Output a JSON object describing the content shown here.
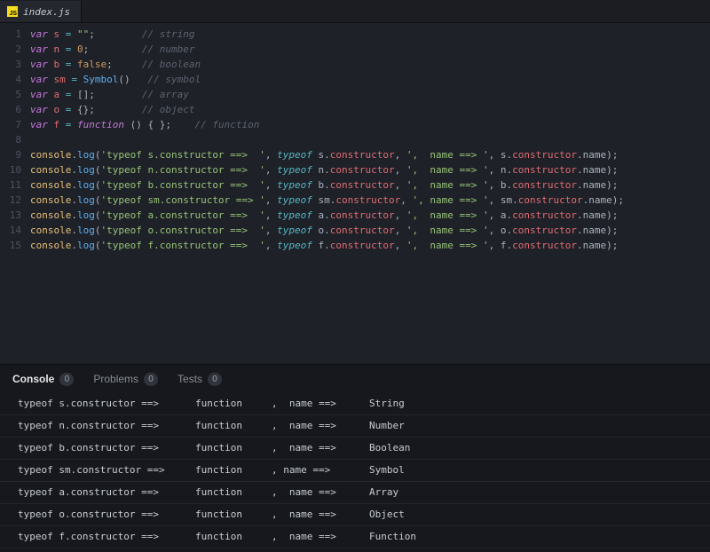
{
  "tab": {
    "filename": "index.js"
  },
  "panel": {
    "tabs": {
      "console": {
        "label": "Console",
        "badge": "0"
      },
      "problems": {
        "label": "Problems",
        "badge": "0"
      },
      "tests": {
        "label": "Tests",
        "badge": "0"
      }
    }
  },
  "editor_lines": [
    {
      "n": 1,
      "kind": "decl",
      "var": "s",
      "rhs_html": "<span class='str'>\"\"</span>",
      "pad": 8,
      "comment": "// string"
    },
    {
      "n": 2,
      "kind": "decl",
      "var": "n",
      "rhs_html": "<span class='num'>0</span>",
      "pad": 9,
      "comment": "// number"
    },
    {
      "n": 3,
      "kind": "decl",
      "var": "b",
      "rhs_html": "<span class='bool'>false</span>",
      "pad": 5,
      "comment": "// boolean"
    },
    {
      "n": 4,
      "kind": "decl",
      "var": "sm",
      "rhs_html": "<span class='fn'>Symbol</span><span class='pn'>()</span>",
      "pad": 3,
      "comment": "// symbol",
      "nosemi": true
    },
    {
      "n": 5,
      "kind": "decl",
      "var": "a",
      "rhs_html": "<span class='pn'>[]</span>",
      "pad": 8,
      "comment": "// array"
    },
    {
      "n": 6,
      "kind": "decl",
      "var": "o",
      "rhs_html": "<span class='pn'>{}</span>",
      "pad": 8,
      "comment": "// object"
    },
    {
      "n": 7,
      "kind": "decl",
      "var": "f",
      "rhs_html": "<span class='kw'>function</span> <span class='pn'>() { }</span>",
      "pad": 4,
      "comment": "// function"
    },
    {
      "n": 8,
      "kind": "blank"
    },
    {
      "n": 9,
      "kind": "log",
      "v": "s",
      "wide": false
    },
    {
      "n": 10,
      "kind": "log",
      "v": "n",
      "wide": false
    },
    {
      "n": 11,
      "kind": "log",
      "v": "b",
      "wide": false
    },
    {
      "n": 12,
      "kind": "log",
      "v": "sm",
      "wide": true
    },
    {
      "n": 13,
      "kind": "log",
      "v": "a",
      "wide": false
    },
    {
      "n": 14,
      "kind": "log",
      "v": "o",
      "wide": false
    },
    {
      "n": 15,
      "kind": "log",
      "v": "f",
      "wide": false
    }
  ],
  "console_rows": [
    {
      "a": "typeof s.constructor ==>  ",
      "b": "function ",
      "c": ",  name ==>  ",
      "d": "String"
    },
    {
      "a": "typeof n.constructor ==>  ",
      "b": "function ",
      "c": ",  name ==>  ",
      "d": "Number"
    },
    {
      "a": "typeof b.constructor ==>  ",
      "b": "function ",
      "c": ",  name ==>  ",
      "d": "Boolean"
    },
    {
      "a": "typeof sm.constructor ==>  ",
      "b": "function ",
      "c": ", name ==>  ",
      "d": "Symbol"
    },
    {
      "a": "typeof a.constructor ==>  ",
      "b": "function ",
      "c": ",  name ==>  ",
      "d": "Array"
    },
    {
      "a": "typeof o.constructor ==>  ",
      "b": "function ",
      "c": ",  name ==>  ",
      "d": "Object"
    },
    {
      "a": "typeof f.constructor ==>  ",
      "b": "function ",
      "c": ",  name ==>  ",
      "d": "Function"
    }
  ]
}
